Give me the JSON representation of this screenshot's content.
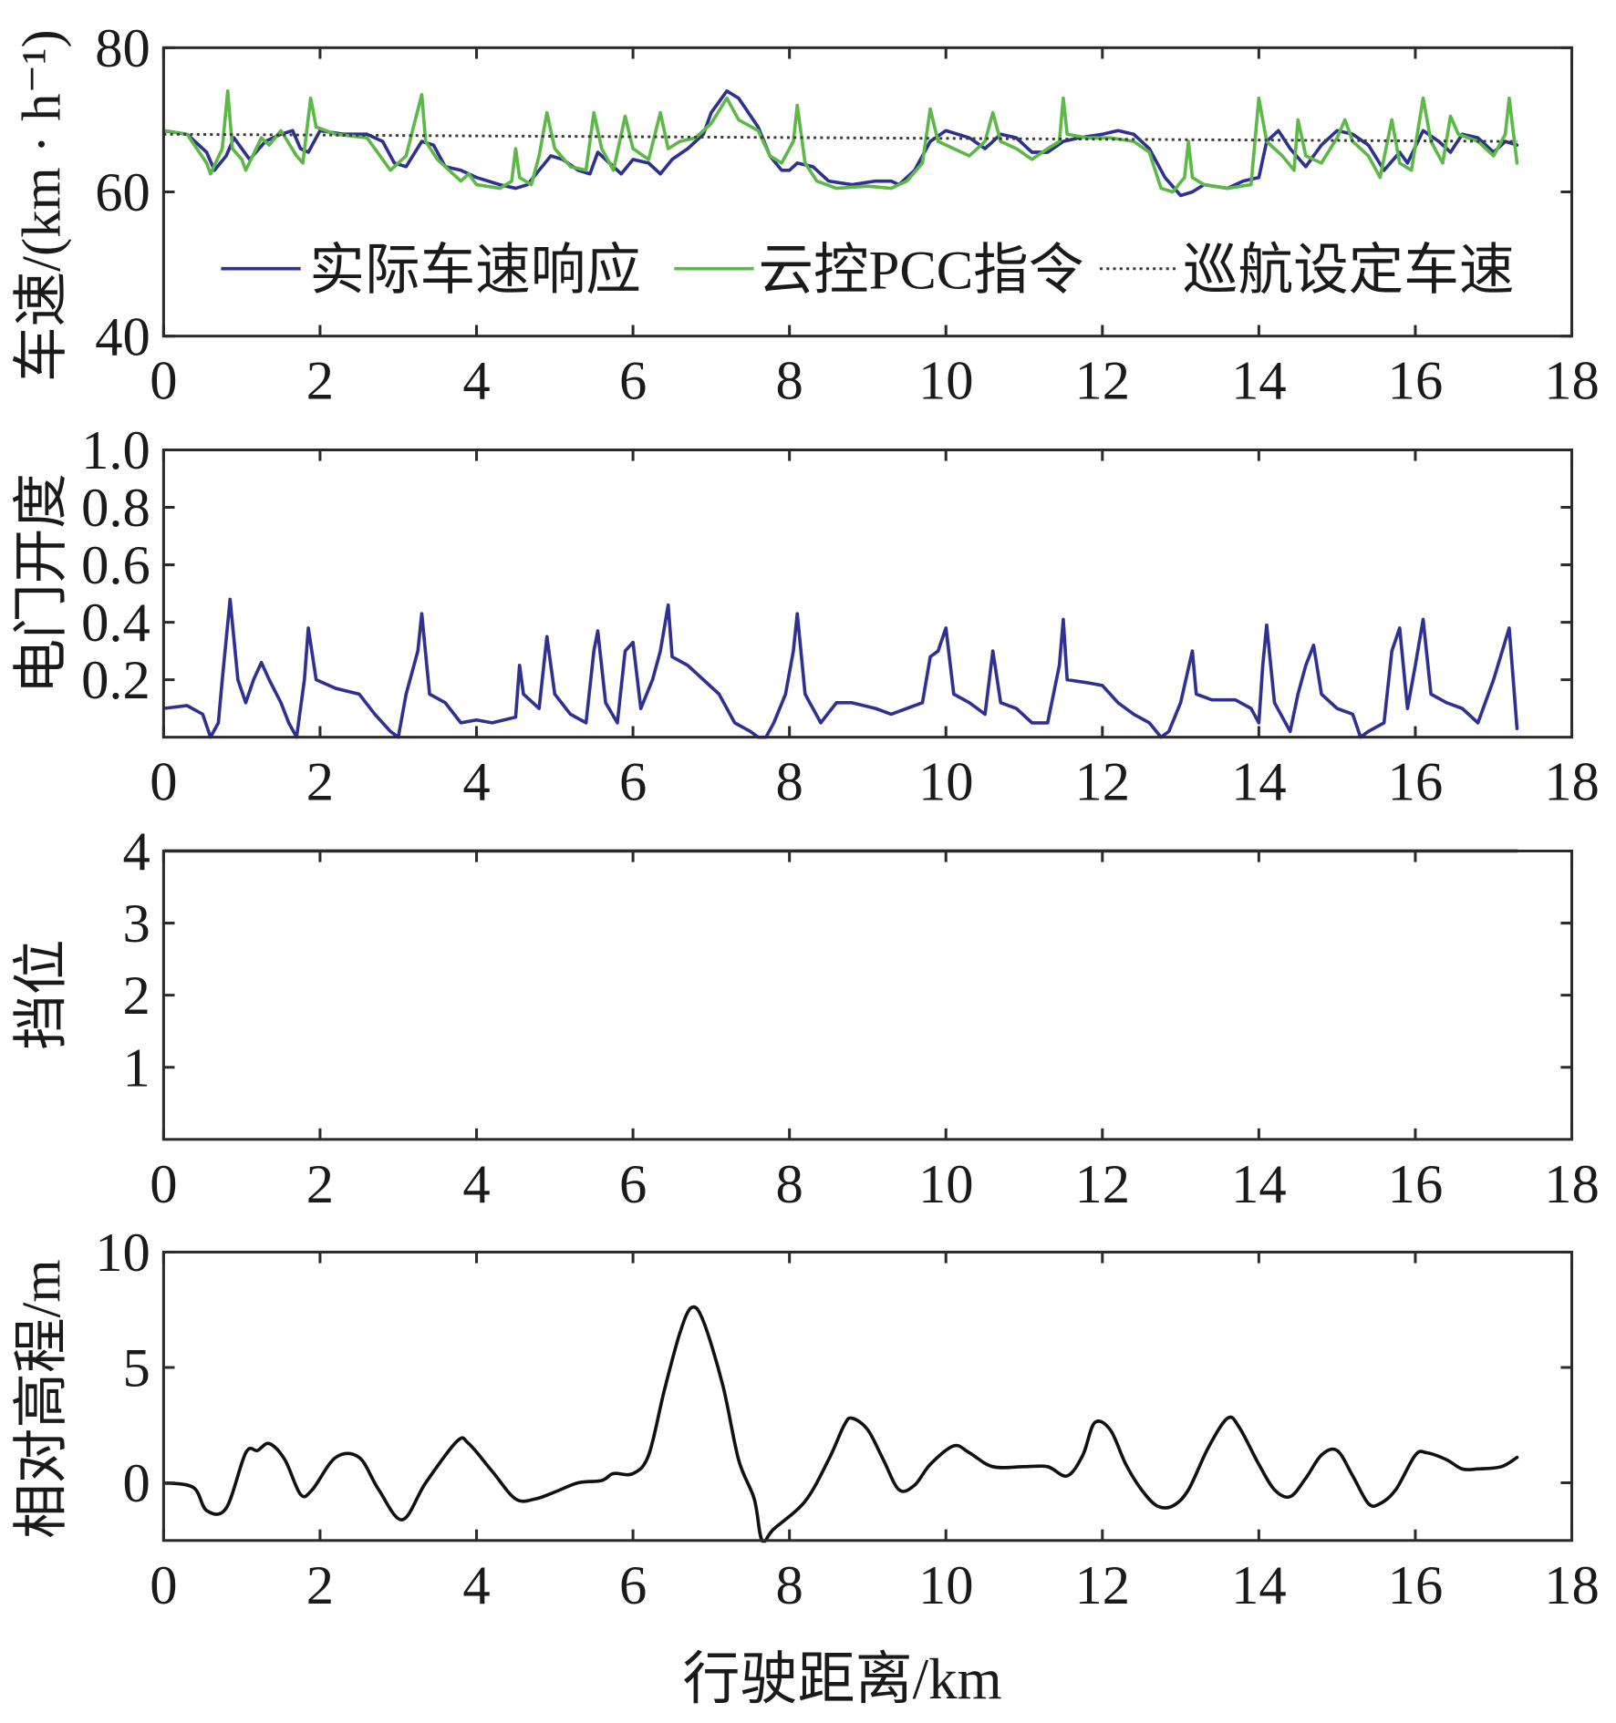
{
  "colors": {
    "axis": "#2b2b2b",
    "text": "#1a1a1a",
    "background": "#ffffff"
  },
  "chart_data": [
    {
      "type": "line",
      "title": "",
      "xlabel": "",
      "ylabel": "车速/(km · h⁻¹)",
      "xlim": [
        0,
        18
      ],
      "ylim": [
        40,
        80
      ],
      "xticks": [
        0,
        2,
        4,
        6,
        8,
        10,
        12,
        14,
        16,
        18
      ],
      "yticks": [
        40,
        60,
        80
      ],
      "ytick_labels": [
        "40",
        "60",
        "80"
      ],
      "grid": false,
      "legend_placement": "bottom-inside",
      "series": [
        {
          "name": "实际车速响应",
          "color": "#2e3192",
          "x": [
            0,
            0.3,
            0.55,
            0.65,
            0.8,
            0.9,
            1.0,
            1.1,
            1.3,
            1.5,
            1.65,
            1.75,
            1.85,
            2.0,
            2.3,
            2.6,
            2.8,
            2.95,
            3.1,
            3.3,
            3.45,
            3.6,
            3.8,
            4.0,
            4.3,
            4.5,
            4.65,
            4.8,
            4.95,
            5.1,
            5.3,
            5.45,
            5.55,
            5.7,
            5.85,
            6.0,
            6.2,
            6.35,
            6.5,
            6.7,
            6.9,
            7.0,
            7.2,
            7.35,
            7.6,
            7.75,
            7.9,
            8.0,
            8.1,
            8.3,
            8.5,
            8.8,
            9.1,
            9.3,
            9.4,
            9.6,
            9.8,
            10.0,
            10.3,
            10.5,
            10.7,
            10.9,
            11.1,
            11.3,
            11.5,
            11.7,
            12.0,
            12.2,
            12.4,
            12.6,
            12.8,
            13.0,
            13.15,
            13.3,
            13.6,
            13.8,
            14.0,
            14.1,
            14.25,
            14.4,
            14.6,
            14.8,
            15.0,
            15.2,
            15.4,
            15.6,
            15.8,
            15.9,
            16.1,
            16.3,
            16.45,
            16.6,
            16.8,
            17.0,
            17.15,
            17.3
          ],
          "y": [
            68.5,
            68.0,
            65.5,
            63.0,
            65.0,
            67.5,
            66.0,
            64.5,
            67.0,
            68.0,
            68.5,
            66.0,
            65.5,
            68.5,
            68.0,
            68.0,
            67.0,
            64.0,
            63.5,
            67.0,
            66.5,
            63.5,
            63.0,
            62.0,
            61.0,
            60.5,
            61.0,
            63.0,
            65.0,
            64.5,
            63.0,
            62.5,
            65.5,
            64.0,
            62.5,
            64.5,
            64.0,
            62.5,
            64.5,
            66.0,
            68.0,
            71.0,
            74.0,
            73.0,
            69.0,
            65.0,
            63.0,
            63.0,
            64.0,
            63.5,
            61.5,
            61.0,
            61.5,
            61.5,
            61.0,
            63.0,
            67.0,
            68.5,
            67.5,
            66.0,
            68.0,
            67.5,
            65.5,
            65.5,
            67.0,
            67.5,
            68.0,
            68.5,
            68.0,
            66.0,
            62.0,
            59.5,
            60.0,
            61.0,
            60.5,
            61.5,
            62.0,
            67.0,
            68.5,
            66.0,
            63.5,
            66.5,
            68.5,
            68.0,
            66.5,
            63.0,
            65.5,
            64.0,
            68.5,
            67.0,
            65.5,
            68.0,
            67.5,
            65.5,
            67.0,
            66.5
          ]
        },
        {
          "name": "云控PCC指令",
          "color": "#5db947",
          "x": [
            0,
            0.3,
            0.55,
            0.6,
            0.75,
            0.82,
            0.88,
            1.0,
            1.05,
            1.25,
            1.35,
            1.5,
            1.7,
            1.78,
            1.88,
            1.95,
            2.2,
            2.6,
            2.9,
            3.1,
            3.3,
            3.35,
            3.5,
            3.65,
            3.8,
            3.9,
            4.0,
            4.3,
            4.45,
            4.5,
            4.55,
            4.7,
            4.8,
            4.9,
            5.0,
            5.2,
            5.4,
            5.5,
            5.6,
            5.75,
            5.9,
            6.0,
            6.2,
            6.35,
            6.45,
            6.6,
            6.8,
            7.0,
            7.2,
            7.35,
            7.6,
            7.75,
            7.9,
            8.05,
            8.1,
            8.2,
            8.35,
            8.6,
            9.0,
            9.3,
            9.5,
            9.7,
            9.8,
            9.9,
            10.1,
            10.3,
            10.5,
            10.6,
            10.7,
            10.9,
            11.1,
            11.3,
            11.45,
            11.5,
            11.55,
            11.8,
            12.1,
            12.4,
            12.6,
            12.75,
            12.9,
            13.05,
            13.1,
            13.15,
            13.3,
            13.6,
            13.9,
            14.0,
            14.1,
            14.3,
            14.45,
            14.5,
            14.6,
            14.8,
            15.0,
            15.1,
            15.2,
            15.4,
            15.55,
            15.7,
            15.8,
            15.95,
            16.1,
            16.2,
            16.35,
            16.45,
            16.55,
            16.8,
            17.0,
            17.15,
            17.2,
            17.3
          ],
          "y": [
            68.5,
            68.0,
            64.0,
            62.5,
            66.0,
            74.0,
            66.0,
            64.5,
            63.0,
            67.5,
            66.5,
            68.5,
            65.0,
            64.0,
            73.0,
            69.0,
            68.0,
            67.5,
            63.0,
            65.0,
            73.5,
            67.0,
            64.5,
            63.0,
            61.5,
            62.5,
            61.0,
            60.5,
            61.5,
            66.0,
            62.0,
            61.0,
            65.0,
            71.0,
            66.0,
            63.5,
            63.0,
            71.0,
            66.0,
            63.0,
            70.5,
            66.0,
            64.5,
            71.0,
            66.0,
            67.0,
            67.5,
            69.5,
            73.0,
            70.0,
            68.5,
            65.0,
            64.0,
            67.0,
            72.0,
            64.0,
            61.5,
            60.5,
            60.8,
            60.5,
            61.5,
            64.0,
            71.5,
            67.0,
            66.0,
            65.0,
            67.0,
            71.0,
            67.0,
            66.0,
            64.5,
            66.0,
            67.0,
            73.0,
            68.0,
            67.5,
            67.5,
            67.0,
            65.5,
            60.5,
            60.0,
            62.0,
            67.0,
            62.0,
            61.0,
            60.5,
            61.0,
            73.0,
            67.0,
            65.0,
            63.0,
            70.0,
            65.0,
            64.0,
            67.5,
            70.0,
            67.0,
            65.0,
            62.0,
            70.0,
            64.0,
            63.0,
            73.0,
            67.0,
            64.0,
            70.5,
            68.0,
            67.0,
            65.0,
            68.0,
            73.0,
            64.0
          ]
        },
        {
          "name": "巡航设定车速",
          "color": "#3a3a3a",
          "dotted": true,
          "x": [
            0,
            17.3
          ],
          "y": [
            68.0,
            67.0
          ]
        }
      ]
    },
    {
      "type": "line",
      "title": "",
      "xlabel": "",
      "ylabel": "电门开度",
      "xlim": [
        0,
        18
      ],
      "ylim": [
        0,
        1.0
      ],
      "xticks": [
        0,
        2,
        4,
        6,
        8,
        10,
        12,
        14,
        16,
        18
      ],
      "yticks": [
        0.2,
        0.4,
        0.6,
        0.8,
        1.0
      ],
      "ytick_labels": [
        "0.2",
        "0.4",
        "0.6",
        "0.8",
        "1.0"
      ],
      "grid": false,
      "series": [
        {
          "color": "#2e3192",
          "x": [
            0,
            0.3,
            0.5,
            0.6,
            0.7,
            0.75,
            0.85,
            0.95,
            1.05,
            1.15,
            1.25,
            1.35,
            1.5,
            1.6,
            1.7,
            1.8,
            1.85,
            1.95,
            2.2,
            2.5,
            2.7,
            2.9,
            3.0,
            3.1,
            3.25,
            3.3,
            3.4,
            3.6,
            3.8,
            4.0,
            4.2,
            4.5,
            4.55,
            4.6,
            4.8,
            4.9,
            5.0,
            5.2,
            5.4,
            5.5,
            5.55,
            5.65,
            5.8,
            5.9,
            6.0,
            6.1,
            6.25,
            6.35,
            6.45,
            6.5,
            6.7,
            6.9,
            7.1,
            7.3,
            7.5,
            7.6,
            7.7,
            7.8,
            7.95,
            8.05,
            8.1,
            8.2,
            8.4,
            8.6,
            8.8,
            9.1,
            9.3,
            9.5,
            9.7,
            9.8,
            9.9,
            10.0,
            10.1,
            10.3,
            10.5,
            10.6,
            10.7,
            10.9,
            11.1,
            11.3,
            11.45,
            11.5,
            11.55,
            11.8,
            12.0,
            12.2,
            12.4,
            12.6,
            12.75,
            12.85,
            13.0,
            13.15,
            13.2,
            13.4,
            13.7,
            13.9,
            14.0,
            14.05,
            14.1,
            14.2,
            14.4,
            14.5,
            14.6,
            14.7,
            14.8,
            15.0,
            15.2,
            15.3,
            15.4,
            15.6,
            15.7,
            15.8,
            15.9,
            16.0,
            16.1,
            16.2,
            16.4,
            16.6,
            16.8,
            17.0,
            17.2,
            17.3
          ],
          "y": [
            0.1,
            0.11,
            0.08,
            0.0,
            0.05,
            0.2,
            0.48,
            0.2,
            0.12,
            0.2,
            0.26,
            0.2,
            0.12,
            0.05,
            0.0,
            0.2,
            0.38,
            0.2,
            0.17,
            0.15,
            0.08,
            0.02,
            0.0,
            0.15,
            0.3,
            0.43,
            0.15,
            0.12,
            0.05,
            0.06,
            0.05,
            0.07,
            0.25,
            0.15,
            0.1,
            0.35,
            0.15,
            0.08,
            0.05,
            0.3,
            0.37,
            0.12,
            0.05,
            0.3,
            0.33,
            0.1,
            0.2,
            0.3,
            0.46,
            0.28,
            0.25,
            0.2,
            0.15,
            0.05,
            0.02,
            0.0,
            0.0,
            0.05,
            0.15,
            0.3,
            0.43,
            0.15,
            0.05,
            0.12,
            0.12,
            0.1,
            0.08,
            0.1,
            0.12,
            0.28,
            0.3,
            0.38,
            0.15,
            0.12,
            0.08,
            0.3,
            0.12,
            0.1,
            0.05,
            0.05,
            0.25,
            0.41,
            0.2,
            0.19,
            0.18,
            0.12,
            0.08,
            0.05,
            0.0,
            0.02,
            0.12,
            0.3,
            0.15,
            0.13,
            0.13,
            0.1,
            0.05,
            0.25,
            0.39,
            0.12,
            0.02,
            0.15,
            0.25,
            0.32,
            0.15,
            0.1,
            0.08,
            0.0,
            0.02,
            0.05,
            0.3,
            0.38,
            0.1,
            0.25,
            0.41,
            0.15,
            0.12,
            0.1,
            0.05,
            0.2,
            0.38,
            0.03
          ]
        }
      ]
    },
    {
      "type": "line",
      "title": "",
      "xlabel": "",
      "ylabel": "挡位",
      "xlim": [
        0,
        18
      ],
      "ylim": [
        0,
        4
      ],
      "xticks": [
        0,
        2,
        4,
        6,
        8,
        10,
        12,
        14,
        16,
        18
      ],
      "yticks": [
        1,
        2,
        3,
        4
      ],
      "ytick_labels": [
        "1",
        "2",
        "3",
        "4"
      ],
      "grid": false,
      "series": [
        {
          "color": "#2e3192",
          "x": [
            0,
            17.3
          ],
          "y": [
            4,
            4
          ]
        }
      ]
    },
    {
      "type": "line",
      "title": "",
      "xlabel": "行驶距离/km",
      "ylabel": "相对高程/m",
      "xlim": [
        0,
        18
      ],
      "ylim": [
        -2.5,
        10
      ],
      "xticks": [
        0,
        2,
        4,
        6,
        8,
        10,
        12,
        14,
        16,
        18
      ],
      "yticks": [
        0,
        5,
        10
      ],
      "ytick_labels": [
        "0",
        "5",
        "10"
      ],
      "grid": false,
      "series": [
        {
          "color": "#111111",
          "smooth": true,
          "x": [
            0,
            0.38,
            0.55,
            0.8,
            1.05,
            1.2,
            1.35,
            1.55,
            1.75,
            1.9,
            2.2,
            2.5,
            2.75,
            3.05,
            3.35,
            3.75,
            3.9,
            4.2,
            4.5,
            4.75,
            5.0,
            5.3,
            5.6,
            5.75,
            6.0,
            6.2,
            6.4,
            6.6,
            6.75,
            6.9,
            7.15,
            7.35,
            7.55,
            7.65,
            7.8,
            8.2,
            8.5,
            8.7,
            8.8,
            9.0,
            9.2,
            9.4,
            9.6,
            9.8,
            10.1,
            10.3,
            10.6,
            11.0,
            11.3,
            11.55,
            11.75,
            11.9,
            12.1,
            12.3,
            12.5,
            12.7,
            12.9,
            13.1,
            13.35,
            13.6,
            13.75,
            14.0,
            14.2,
            14.4,
            14.6,
            14.8,
            15.0,
            15.2,
            15.4,
            15.55,
            15.75,
            16.0,
            16.15,
            16.4,
            16.6,
            16.8,
            17.1,
            17.3
          ],
          "y": [
            0,
            -0.2,
            -1.2,
            -1.1,
            1.3,
            1.4,
            1.7,
            1.0,
            -0.5,
            -0.3,
            1.1,
            1.1,
            -0.3,
            -1.6,
            0,
            1.8,
            1.7,
            0.5,
            -0.7,
            -0.7,
            -0.4,
            0,
            0.1,
            0.4,
            0.4,
            1.2,
            4.0,
            6.5,
            7.6,
            7.0,
            4.2,
            1.0,
            -0.7,
            -2.5,
            -2.0,
            -0.8,
            1.0,
            2.5,
            2.8,
            2.3,
            1.0,
            -0.3,
            -0.1,
            0.8,
            1.6,
            1.3,
            0.7,
            0.7,
            0.7,
            0.3,
            1.2,
            2.6,
            2.3,
            0.8,
            -0.3,
            -1.0,
            -1.0,
            -0.3,
            1.5,
            2.8,
            2.4,
            0.8,
            -0.3,
            -0.6,
            0.2,
            1.2,
            1.4,
            0.3,
            -0.9,
            -0.9,
            -0.3,
            1.2,
            1.3,
            1.0,
            0.6,
            0.6,
            0.7,
            1.1
          ]
        }
      ]
    }
  ]
}
